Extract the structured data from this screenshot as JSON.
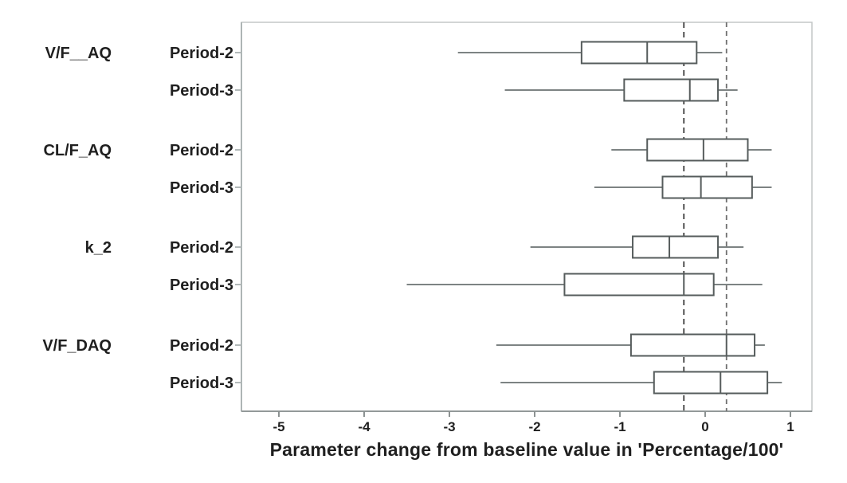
{
  "chart_data": {
    "type": "boxplot",
    "orientation": "horizontal",
    "title": "",
    "xlabel": "Parameter change from baseline value in 'Percentage/100'",
    "x_ticks": [
      -5,
      -4,
      -3,
      -2,
      -1,
      0,
      1
    ],
    "xlim": [
      -5.44,
      1.25
    ],
    "grid": false,
    "legend": "none",
    "reference_lines": [
      {
        "x": -0.25,
        "style": "dashed"
      },
      {
        "x": 0.25,
        "style": "dashed"
      }
    ],
    "groups": [
      {
        "label": "V/F__AQ",
        "rows": [
          {
            "label": "Period-2",
            "whisker_low": -2.9,
            "q1": -1.45,
            "median": -0.68,
            "q3": -0.1,
            "whisker_high": 0.2
          },
          {
            "label": "Period-3",
            "whisker_low": -2.35,
            "q1": -0.95,
            "median": -0.18,
            "q3": 0.15,
            "whisker_high": 0.38
          }
        ]
      },
      {
        "label": "CL/F_AQ",
        "rows": [
          {
            "label": "Period-2",
            "whisker_low": -1.1,
            "q1": -0.68,
            "median": -0.02,
            "q3": 0.5,
            "whisker_high": 0.78
          },
          {
            "label": "Period-3",
            "whisker_low": -1.3,
            "q1": -0.5,
            "median": -0.05,
            "q3": 0.55,
            "whisker_high": 0.78
          }
        ]
      },
      {
        "label": "k_2",
        "rows": [
          {
            "label": "Period-2",
            "whisker_low": -2.05,
            "q1": -0.85,
            "median": -0.42,
            "q3": 0.15,
            "whisker_high": 0.45
          },
          {
            "label": "Period-3",
            "whisker_low": -3.5,
            "q1": -1.65,
            "median": -0.25,
            "q3": 0.1,
            "whisker_high": 0.67
          }
        ]
      },
      {
        "label": "V/F_DAQ",
        "rows": [
          {
            "label": "Period-2",
            "whisker_low": -2.45,
            "q1": -0.87,
            "median": 0.25,
            "q3": 0.58,
            "whisker_high": 0.7
          },
          {
            "label": "Period-3",
            "whisker_low": -2.4,
            "q1": -0.6,
            "median": 0.18,
            "q3": 0.73,
            "whisker_high": 0.9
          }
        ]
      }
    ]
  },
  "colors": {
    "background": "#ffffff",
    "text": "#1f1f1f",
    "frame": "#c3c7c7",
    "axis_line": "#939999",
    "left_border": "#aeb5b5",
    "row_tick": "#b2b9b9",
    "axis_tick": "#8c9292",
    "box_border": "#565c5c",
    "box_fill": "#ffffff",
    "whisker": "#7d8383",
    "median": "#565c5c",
    "ref_line_1": "#3f3f3f",
    "ref_line_2": "#6f6f6f"
  }
}
